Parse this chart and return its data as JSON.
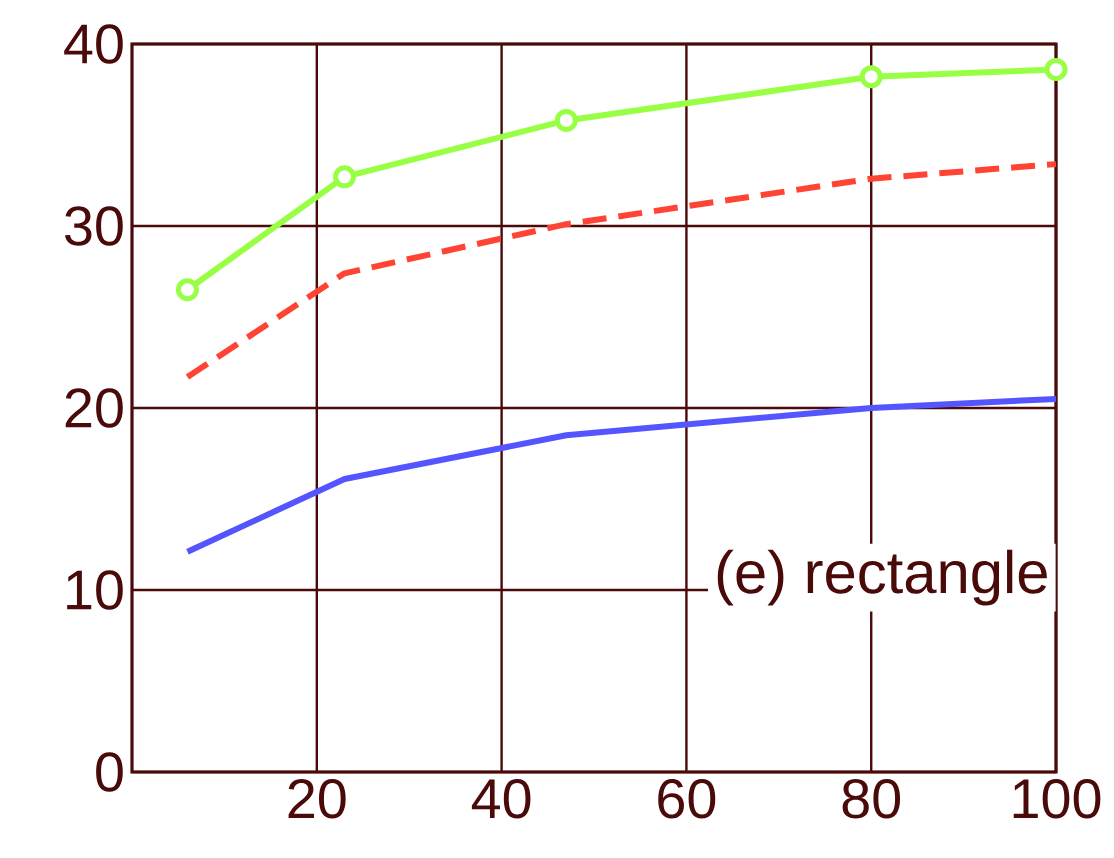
{
  "chart_data": {
    "type": "line",
    "x": [
      6,
      23,
      47,
      80,
      100
    ],
    "series": [
      {
        "color": "#99ff44",
        "values": [
          26.5,
          32.7,
          35.8,
          38.2,
          38.6
        ],
        "marker": "circle",
        "line_style": "solid"
      },
      {
        "color": "#ff4433",
        "values": [
          21.7,
          27.4,
          30.1,
          32.6,
          33.4
        ],
        "marker": "none",
        "line_style": "dashed"
      },
      {
        "color": "#5555ff",
        "values": [
          12.1,
          16.1,
          18.5,
          20.0,
          20.5
        ],
        "marker": "none",
        "line_style": "solid"
      }
    ],
    "xlim": [
      0,
      100
    ],
    "ylim": [
      0,
      40
    ],
    "xticks": [
      20,
      40,
      60,
      80,
      100
    ],
    "yticks": [
      0,
      10,
      20,
      30,
      40
    ],
    "grid": true,
    "annotations": [
      "(e) rectangle"
    ]
  }
}
